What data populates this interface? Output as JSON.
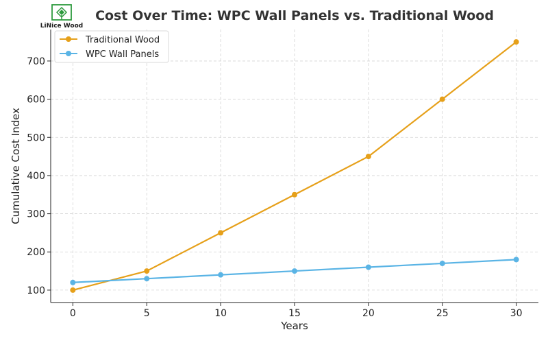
{
  "logo": {
    "text": "LiNice Wood",
    "color": "#2e9a3e"
  },
  "chart_data": {
    "type": "line",
    "title": "Cost Over Time: WPC Wall Panels vs. Traditional Wood",
    "xlabel": "Years",
    "ylabel": "Cumulative Cost Index",
    "x": [
      0,
      5,
      10,
      15,
      20,
      25,
      30
    ],
    "x_ticks": [
      0,
      5,
      10,
      15,
      20,
      25,
      30
    ],
    "y_ticks": [
      100,
      200,
      300,
      400,
      500,
      600,
      700
    ],
    "xlim": [
      -1.5,
      31.5
    ],
    "ylim": [
      67.5,
      782.5
    ],
    "grid": true,
    "legend_position": "top-left",
    "series": [
      {
        "name": "Traditional Wood",
        "color": "#e6a01a",
        "marker": "circle",
        "values": [
          100,
          150,
          250,
          350,
          450,
          600,
          750
        ]
      },
      {
        "name": "WPC Wall Panels",
        "color": "#5ab4e5",
        "marker": "circle",
        "values": [
          120,
          130,
          140,
          150,
          160,
          170,
          180
        ]
      }
    ]
  }
}
